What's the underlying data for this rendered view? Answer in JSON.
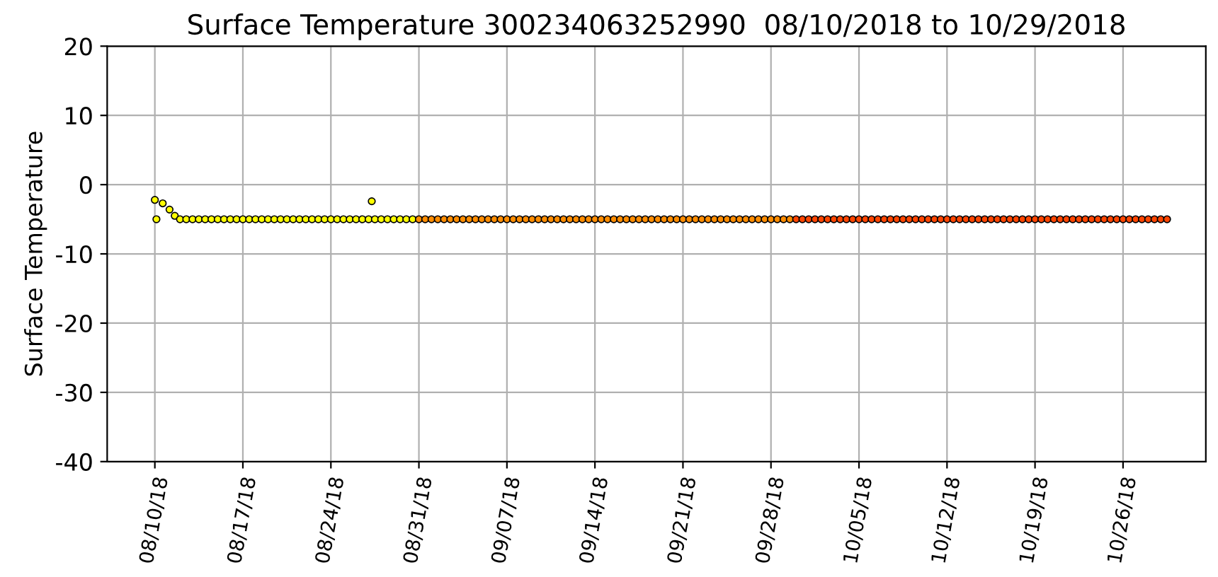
{
  "chart_data": {
    "type": "scatter",
    "title": "Surface Temperature 300234063252990  08/10/2018 to 10/29/2018",
    "ylabel": "Surface Temperature",
    "xlim": [
      "2018-08-06T05:00",
      "2018-11-01T14:00"
    ],
    "xticks": [
      {
        "value": "2018-08-10",
        "label": "08/10/18"
      },
      {
        "value": "2018-08-17",
        "label": "08/17/18"
      },
      {
        "value": "2018-08-24",
        "label": "08/24/18"
      },
      {
        "value": "2018-08-31",
        "label": "08/31/18"
      },
      {
        "value": "2018-09-07",
        "label": "09/07/18"
      },
      {
        "value": "2018-09-14",
        "label": "09/14/18"
      },
      {
        "value": "2018-09-21",
        "label": "09/21/18"
      },
      {
        "value": "2018-09-28",
        "label": "09/28/18"
      },
      {
        "value": "2018-10-05",
        "label": "10/05/18"
      },
      {
        "value": "2018-10-12",
        "label": "10/12/18"
      },
      {
        "value": "2018-10-19",
        "label": "10/19/18"
      },
      {
        "value": "2018-10-26",
        "label": "10/26/18"
      }
    ],
    "ylim": [
      -40,
      20
    ],
    "yticks": [
      -40,
      -30,
      -20,
      -10,
      0,
      10,
      20
    ],
    "grid": true,
    "marker": "circle",
    "series": [
      {
        "color": "#ffff00",
        "x": [
          "2018-08-10T00:00",
          "2018-08-10T03:00",
          "2018-08-10T15:00",
          "2018-08-11T04:00",
          "2018-08-11T14:00",
          "2018-08-12T00:00",
          "2018-08-12T12:00",
          "2018-08-13T00:00",
          "2018-08-13T12:00",
          "2018-08-14T00:00",
          "2018-08-14T12:00",
          "2018-08-15T00:00",
          "2018-08-15T12:00",
          "2018-08-16T00:00",
          "2018-08-16T12:00",
          "2018-08-17T00:00",
          "2018-08-17T12:00",
          "2018-08-18T00:00",
          "2018-08-18T12:00",
          "2018-08-19T00:00",
          "2018-08-19T12:00",
          "2018-08-20T00:00",
          "2018-08-20T12:00",
          "2018-08-21T00:00",
          "2018-08-21T12:00",
          "2018-08-22T00:00",
          "2018-08-22T12:00",
          "2018-08-23T00:00",
          "2018-08-23T12:00",
          "2018-08-24T00:00",
          "2018-08-24T12:00",
          "2018-08-25T00:00",
          "2018-08-25T12:00",
          "2018-08-26T00:00",
          "2018-08-26T12:00",
          "2018-08-27T00:00",
          "2018-08-27T12:00",
          "2018-08-28T00:00",
          "2018-08-28T12:00",
          "2018-08-29T00:00",
          "2018-08-29T12:00",
          "2018-08-30T00:00",
          "2018-08-30T12:00",
          "2018-08-27T06:00"
        ],
        "values": [
          -2.2,
          -5,
          -2.7,
          -3.6,
          -4.5,
          -5,
          -5,
          -5,
          -5,
          -5,
          -5,
          -5,
          -5,
          -5,
          -5,
          -5,
          -5,
          -5,
          -5,
          -5,
          -5,
          -5,
          -5,
          -5,
          -5,
          -5,
          -5,
          -5,
          -5,
          -5,
          -5,
          -5,
          -5,
          -5,
          -5,
          -5,
          -5,
          -5,
          -5,
          -5,
          -5,
          -5,
          -5,
          -2.4
        ]
      },
      {
        "color": "#ff8c00",
        "x": [
          "2018-08-31T00:00",
          "2018-08-31T12:00",
          "2018-09-01T00:00",
          "2018-09-01T12:00",
          "2018-09-02T00:00",
          "2018-09-02T12:00",
          "2018-09-03T00:00",
          "2018-09-03T12:00",
          "2018-09-04T00:00",
          "2018-09-04T12:00",
          "2018-09-05T00:00",
          "2018-09-05T12:00",
          "2018-09-06T00:00",
          "2018-09-06T12:00",
          "2018-09-07T00:00",
          "2018-09-07T12:00",
          "2018-09-08T00:00",
          "2018-09-08T12:00",
          "2018-09-09T00:00",
          "2018-09-09T12:00",
          "2018-09-10T00:00",
          "2018-09-10T12:00",
          "2018-09-11T00:00",
          "2018-09-11T12:00",
          "2018-09-12T00:00",
          "2018-09-12T12:00",
          "2018-09-13T00:00",
          "2018-09-13T12:00",
          "2018-09-14T00:00",
          "2018-09-14T12:00",
          "2018-09-15T00:00",
          "2018-09-15T12:00",
          "2018-09-16T00:00",
          "2018-09-16T12:00",
          "2018-09-17T00:00",
          "2018-09-17T12:00",
          "2018-09-18T00:00",
          "2018-09-18T12:00",
          "2018-09-19T00:00",
          "2018-09-19T12:00",
          "2018-09-20T00:00",
          "2018-09-20T12:00",
          "2018-09-21T00:00",
          "2018-09-21T12:00",
          "2018-09-22T00:00",
          "2018-09-22T12:00",
          "2018-09-23T00:00",
          "2018-09-23T12:00",
          "2018-09-24T00:00",
          "2018-09-24T12:00",
          "2018-09-25T00:00",
          "2018-09-25T12:00",
          "2018-09-26T00:00",
          "2018-09-26T12:00",
          "2018-09-27T00:00",
          "2018-09-27T12:00",
          "2018-09-28T00:00",
          "2018-09-28T12:00",
          "2018-09-29T00:00",
          "2018-09-29T12:00"
        ],
        "values": [
          -5,
          -5,
          -5,
          -5,
          -5,
          -5,
          -5,
          -5,
          -5,
          -5,
          -5,
          -5,
          -5,
          -5,
          -5,
          -5,
          -5,
          -5,
          -5,
          -5,
          -5,
          -5,
          -5,
          -5,
          -5,
          -5,
          -5,
          -5,
          -5,
          -5,
          -5,
          -5,
          -5,
          -5,
          -5,
          -5,
          -5,
          -5,
          -5,
          -5,
          -5,
          -5,
          -5,
          -5,
          -5,
          -5,
          -5,
          -5,
          -5,
          -5,
          -5,
          -5,
          -5,
          -5,
          -5,
          -5,
          -5,
          -5,
          -5,
          -5
        ]
      },
      {
        "color": "#ff4500",
        "x": [
          "2018-09-30T00:00",
          "2018-09-30T12:00",
          "2018-10-01T00:00",
          "2018-10-01T12:00",
          "2018-10-02T00:00",
          "2018-10-02T12:00",
          "2018-10-03T00:00",
          "2018-10-03T12:00",
          "2018-10-04T00:00",
          "2018-10-04T12:00",
          "2018-10-05T00:00",
          "2018-10-05T12:00",
          "2018-10-06T00:00",
          "2018-10-06T12:00",
          "2018-10-07T00:00",
          "2018-10-07T12:00",
          "2018-10-08T00:00",
          "2018-10-08T12:00",
          "2018-10-09T00:00",
          "2018-10-09T12:00",
          "2018-10-10T00:00",
          "2018-10-10T12:00",
          "2018-10-11T00:00",
          "2018-10-11T12:00",
          "2018-10-12T00:00",
          "2018-10-12T12:00",
          "2018-10-13T00:00",
          "2018-10-13T12:00",
          "2018-10-14T00:00",
          "2018-10-14T12:00",
          "2018-10-15T00:00",
          "2018-10-15T12:00",
          "2018-10-16T00:00",
          "2018-10-16T12:00",
          "2018-10-17T00:00",
          "2018-10-17T12:00",
          "2018-10-18T00:00",
          "2018-10-18T12:00",
          "2018-10-19T00:00",
          "2018-10-19T12:00",
          "2018-10-20T00:00",
          "2018-10-20T12:00",
          "2018-10-21T00:00",
          "2018-10-21T12:00",
          "2018-10-22T00:00",
          "2018-10-22T12:00",
          "2018-10-23T00:00",
          "2018-10-23T12:00",
          "2018-10-24T00:00",
          "2018-10-24T12:00",
          "2018-10-25T00:00",
          "2018-10-25T12:00",
          "2018-10-26T00:00",
          "2018-10-26T12:00",
          "2018-10-27T00:00",
          "2018-10-27T12:00",
          "2018-10-28T00:00",
          "2018-10-28T12:00",
          "2018-10-29T00:00",
          "2018-10-29T12:00"
        ],
        "values": [
          -5,
          -5,
          -5,
          -5,
          -5,
          -5,
          -5,
          -5,
          -5,
          -5,
          -5,
          -5,
          -5,
          -5,
          -5,
          -5,
          -5,
          -5,
          -5,
          -5,
          -5,
          -5,
          -5,
          -5,
          -5,
          -5,
          -5,
          -5,
          -5,
          -5,
          -5,
          -5,
          -5,
          -5,
          -5,
          -5,
          -5,
          -5,
          -5,
          -5,
          -5,
          -5,
          -5,
          -5,
          -5,
          -5,
          -5,
          -5,
          -5,
          -5,
          -5,
          -5,
          -5,
          -5,
          -5,
          -5,
          -5,
          -5,
          -5,
          -5
        ]
      }
    ]
  }
}
